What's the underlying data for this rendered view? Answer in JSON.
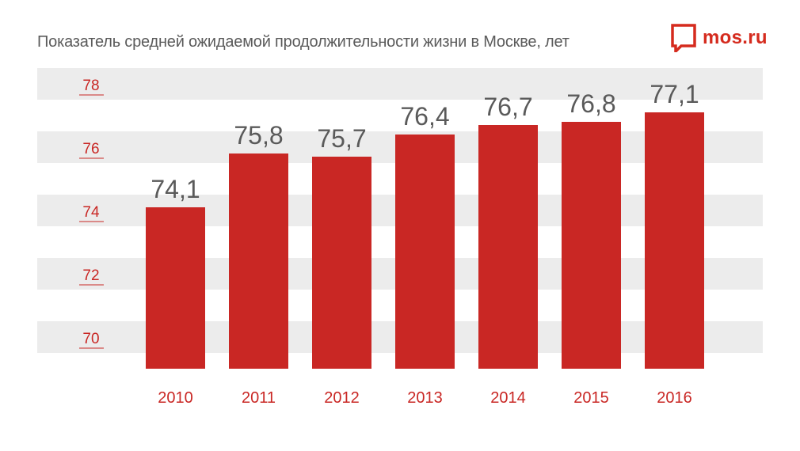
{
  "title": "Показатель средней ожидаемой продолжительности жизни в Москве, лет",
  "logo": {
    "text": "mos.ru",
    "icon": "mos-ru-speech-bubble-icon"
  },
  "colors": {
    "bar": "#c92724",
    "band": "#ececec",
    "axis_label": "#c92724",
    "tick_line": "#c92724",
    "value_label": "#5a5a5a",
    "title": "#5b5b5b",
    "logo": "#d52b1e"
  },
  "chart_data": {
    "type": "bar",
    "title": "Показатель средней ожидаемой продолжительности жизни в Москве, лет",
    "categories": [
      "2010",
      "2011",
      "2012",
      "2013",
      "2014",
      "2015",
      "2016"
    ],
    "values": [
      74.1,
      75.8,
      75.7,
      76.4,
      76.7,
      76.8,
      77.1
    ],
    "value_labels": [
      "74,1",
      "75,8",
      "75,7",
      "76,4",
      "76,7",
      "76,8",
      "77,1"
    ],
    "yticks": [
      70,
      72,
      74,
      76,
      78
    ],
    "ytick_labels": [
      "70",
      "72",
      "74",
      "76",
      "78"
    ],
    "ylim": [
      69,
      79
    ],
    "xlabel": "",
    "ylabel": "",
    "grid": "alternating horizontal bands"
  }
}
